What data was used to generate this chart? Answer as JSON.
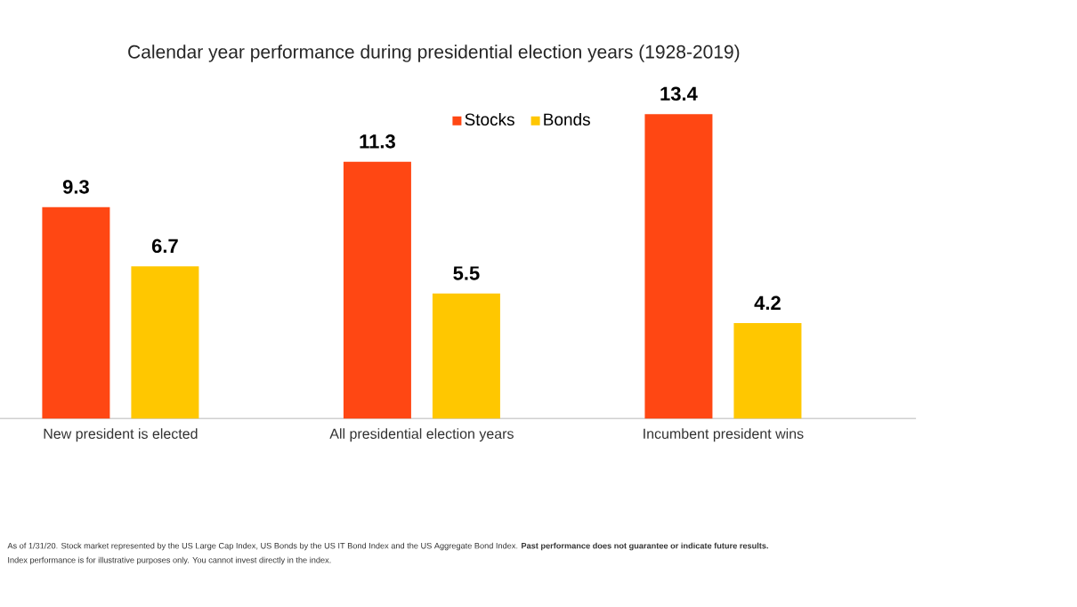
{
  "chart_data": {
    "type": "bar",
    "title": "Calendar year performance during presidential election years (1928-2019)",
    "categories": [
      "New president is elected",
      "All presidential election years",
      "Incumbent president wins"
    ],
    "series": [
      {
        "name": "Stocks",
        "color": "#ff4713",
        "values": [
          9.3,
          11.3,
          13.4
        ]
      },
      {
        "name": "Bonds",
        "color": "#ffc700",
        "values": [
          6.7,
          5.5,
          4.2
        ]
      }
    ],
    "data_labels": true,
    "legend": "top",
    "annotations": [
      "As of 1/31/20. Stock market represented by the US Large Cap Index, US Bonds by the US IT Bond Index and the US Aggregate Bond Index. **Past performance does not guarantee or indicate future results.**",
      "Index performance is for illustrative purposes only. You cannot invest directly in the index."
    ]
  }
}
